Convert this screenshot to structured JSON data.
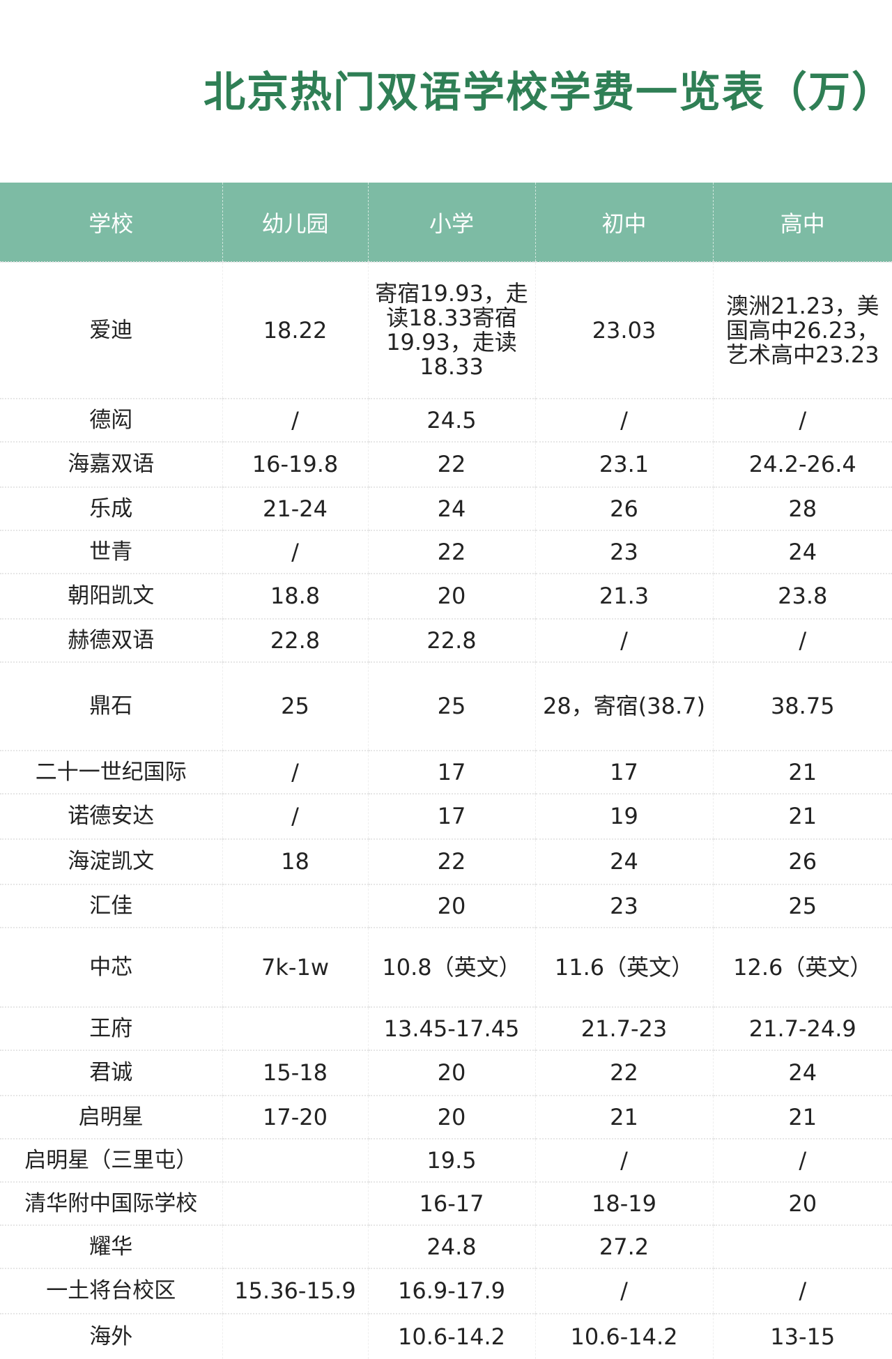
{
  "title": "北京热门双语学校学费一览表（万）",
  "colors": {
    "title": "#2f7f55",
    "header_bg": "#7dbba4",
    "header_text": "#ffffff"
  },
  "columns": [
    "学校",
    "幼儿园",
    "小学",
    "初中",
    "高中"
  ],
  "rows": [
    [
      "爱迪",
      "18.22",
      "寄宿19.93，走读18.33寄宿19.93，走读18.33",
      "23.03",
      "澳洲21.23，美国高中26.23，艺术高中23.23"
    ],
    [
      "德闳",
      "/",
      "24.5",
      "/",
      "/"
    ],
    [
      "海嘉双语",
      "16-19.8",
      "22",
      "23.1",
      "24.2-26.4"
    ],
    [
      "乐成",
      "21-24",
      "24",
      "26",
      "28"
    ],
    [
      "世青",
      "/",
      "22",
      "23",
      "24"
    ],
    [
      "朝阳凯文",
      "18.8",
      "20",
      "21.3",
      "23.8"
    ],
    [
      "赫德双语",
      "22.8",
      "22.8",
      "/",
      "/"
    ],
    [
      "鼎石",
      "25",
      "25",
      "28，寄宿(38.7)",
      "38.75"
    ],
    [
      "二十一世纪国际",
      "/",
      "17",
      "17",
      "21"
    ],
    [
      "诺德安达",
      "/",
      "17",
      "19",
      "21"
    ],
    [
      "海淀凯文",
      "18",
      "22",
      "24",
      "26"
    ],
    [
      "汇佳",
      "",
      "20",
      "23",
      "25"
    ],
    [
      "中芯",
      "7k-1w",
      "10.8（英文）",
      "11.6（英文）",
      "12.6（英文）"
    ],
    [
      "王府",
      "",
      "13.45-17.45",
      "21.7-23",
      "21.7-24.9"
    ],
    [
      "君诚",
      "15-18",
      "20",
      "22",
      "24"
    ],
    [
      "启明星",
      "17-20",
      "20",
      "21",
      "21"
    ],
    [
      "启明星（三里屯）",
      "",
      "19.5",
      "/",
      "/"
    ],
    [
      "清华附中国际学校",
      "",
      "16-17",
      "18-19",
      "20"
    ],
    [
      "耀华",
      "",
      "24.8",
      "27.2",
      ""
    ],
    [
      "一土将台校区",
      "15.36-15.9",
      "16.9-17.9",
      "/",
      "/"
    ],
    [
      "海外",
      "",
      "10.6-14.2",
      "10.6-14.2",
      "13-15"
    ]
  ]
}
